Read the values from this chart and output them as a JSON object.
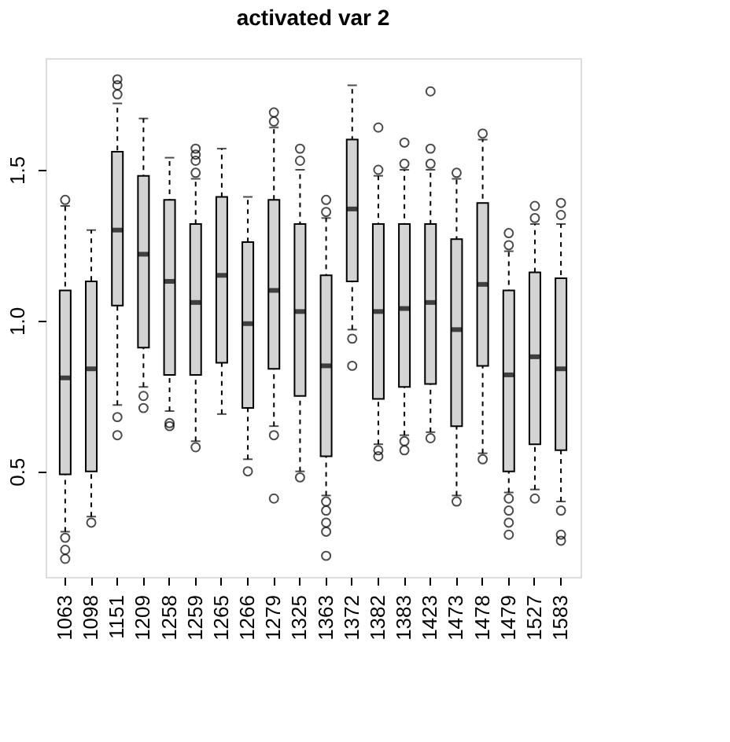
{
  "chart_data": {
    "type": "box",
    "title": "activated var 2",
    "categories": [
      "1063",
      "1098",
      "1151",
      "1209",
      "1258",
      "1259",
      "1265",
      "1266",
      "1279",
      "1325",
      "1363",
      "1372",
      "1382",
      "1383",
      "1423",
      "1473",
      "1478",
      "1479",
      "1527",
      "1583"
    ],
    "color": "#d3d3d3",
    "ylim": [
      0.15,
      1.87
    ],
    "yticks": [
      0.5,
      {
        "value": 1.0,
        "label": "1.0"
      },
      1.5
    ],
    "grid": false,
    "boxes": [
      {
        "low": 0.3,
        "q1": 0.49,
        "median": 0.81,
        "q3": 1.1,
        "high": 1.38,
        "outliers": [
          1.4,
          0.28,
          0.24,
          0.21
        ]
      },
      {
        "low": 0.35,
        "q1": 0.5,
        "median": 0.84,
        "q3": 1.13,
        "high": 1.3,
        "outliers": [
          0.33
        ]
      },
      {
        "low": 0.72,
        "q1": 1.05,
        "median": 1.3,
        "q3": 1.56,
        "high": 1.72,
        "outliers": [
          1.8,
          1.78,
          1.75,
          0.68,
          0.62
        ]
      },
      {
        "low": 0.78,
        "q1": 0.91,
        "median": 1.22,
        "q3": 1.48,
        "high": 1.67,
        "outliers": [
          0.75,
          0.71
        ]
      },
      {
        "low": 0.7,
        "q1": 0.82,
        "median": 1.13,
        "q3": 1.4,
        "high": 1.54,
        "outliers": [
          0.66,
          0.65
        ]
      },
      {
        "low": 0.6,
        "q1": 0.82,
        "median": 1.06,
        "q3": 1.32,
        "high": 1.47,
        "outliers": [
          1.57,
          1.55,
          1.53,
          1.49,
          0.58
        ]
      },
      {
        "low": 0.69,
        "q1": 0.86,
        "median": 1.15,
        "q3": 1.41,
        "high": 1.57
      },
      {
        "low": 0.54,
        "q1": 0.71,
        "median": 0.99,
        "q3": 1.26,
        "high": 1.41,
        "outliers": [
          0.5
        ]
      },
      {
        "low": 0.65,
        "q1": 0.84,
        "median": 1.1,
        "q3": 1.4,
        "high": 1.64,
        "outliers": [
          1.69,
          1.66,
          0.62,
          0.41
        ]
      },
      {
        "low": 0.5,
        "q1": 0.75,
        "median": 1.03,
        "q3": 1.32,
        "high": 1.5,
        "outliers": [
          1.57,
          1.53,
          0.48
        ]
      },
      {
        "low": 0.42,
        "q1": 0.55,
        "median": 0.85,
        "q3": 1.15,
        "high": 1.34,
        "outliers": [
          1.4,
          1.36,
          0.4,
          0.37,
          0.33,
          0.3,
          0.22
        ]
      },
      {
        "low": 0.97,
        "q1": 1.13,
        "median": 1.37,
        "q3": 1.6,
        "high": 1.78,
        "outliers": [
          0.94,
          0.85
        ]
      },
      {
        "low": 0.59,
        "q1": 0.74,
        "median": 1.03,
        "q3": 1.32,
        "high": 1.48,
        "outliers": [
          1.64,
          1.5,
          0.57,
          0.55
        ]
      },
      {
        "low": 0.62,
        "q1": 0.78,
        "median": 1.04,
        "q3": 1.32,
        "high": 1.5,
        "outliers": [
          1.59,
          1.52,
          0.6,
          0.57
        ]
      },
      {
        "low": 0.63,
        "q1": 0.79,
        "median": 1.06,
        "q3": 1.32,
        "high": 1.5,
        "outliers": [
          1.76,
          1.57,
          1.52,
          0.61
        ]
      },
      {
        "low": 0.42,
        "q1": 0.65,
        "median": 0.97,
        "q3": 1.27,
        "high": 1.47,
        "outliers": [
          1.49,
          0.4
        ]
      },
      {
        "low": 0.56,
        "q1": 0.85,
        "median": 1.12,
        "q3": 1.39,
        "high": 1.6,
        "outliers": [
          1.62,
          0.54
        ]
      },
      {
        "low": 0.43,
        "q1": 0.5,
        "median": 0.82,
        "q3": 1.1,
        "high": 1.23,
        "outliers": [
          1.29,
          1.25,
          0.41,
          0.37,
          0.33,
          0.29
        ]
      },
      {
        "low": 0.44,
        "q1": 0.59,
        "median": 0.88,
        "q3": 1.16,
        "high": 1.32,
        "outliers": [
          1.38,
          1.34,
          0.41
        ]
      },
      {
        "low": 0.4,
        "q1": 0.57,
        "median": 0.84,
        "q3": 1.14,
        "high": 1.32,
        "outliers": [
          1.39,
          1.35,
          0.37,
          0.29,
          0.27
        ]
      }
    ]
  }
}
